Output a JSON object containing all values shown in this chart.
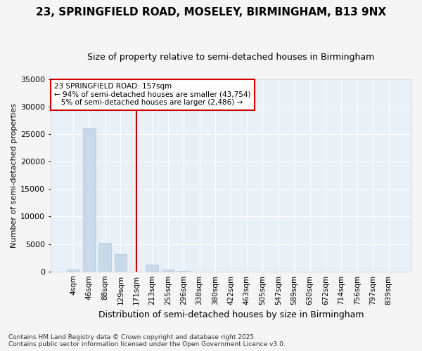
{
  "title": "23, SPRINGFIELD ROAD, MOSELEY, BIRMINGHAM, B13 9NX",
  "subtitle": "Size of property relative to semi-detached houses in Birmingham",
  "xlabel": "Distribution of semi-detached houses by size in Birmingham",
  "ylabel": "Number of semi-detached properties",
  "categories": [
    "4sqm",
    "46sqm",
    "88sqm",
    "129sqm",
    "171sqm",
    "213sqm",
    "255sqm",
    "296sqm",
    "338sqm",
    "380sqm",
    "422sqm",
    "463sqm",
    "505sqm",
    "547sqm",
    "589sqm",
    "630sqm",
    "672sqm",
    "714sqm",
    "756sqm",
    "797sqm",
    "839sqm"
  ],
  "values": [
    400,
    26200,
    5200,
    3200,
    0,
    1200,
    400,
    100,
    0,
    0,
    0,
    0,
    0,
    0,
    0,
    0,
    0,
    0,
    0,
    0,
    0
  ],
  "bar_color": "#c8daea",
  "bar_edge_color": "#b0c8dc",
  "vline_x_index": 4,
  "vline_color": "#cc0000",
  "ylim": [
    0,
    35000
  ],
  "yticks": [
    0,
    5000,
    10000,
    15000,
    20000,
    25000,
    30000,
    35000
  ],
  "annotation_text": "23 SPRINGFIELD ROAD: 157sqm\n← 94% of semi-detached houses are smaller (43,754)\n   5% of semi-detached houses are larger (2,486) →",
  "annotation_box_color": "#ffffff",
  "annotation_border_color": "#cc0000",
  "footer_line1": "Contains HM Land Registry data © Crown copyright and database right 2025.",
  "footer_line2": "Contains public sector information licensed under the Open Government Licence v3.0.",
  "bg_color": "#f5f5f5",
  "plot_bg_color": "#e8f0f8",
  "title_fontsize": 11,
  "subtitle_fontsize": 9,
  "ylabel_fontsize": 8,
  "xlabel_fontsize": 9
}
